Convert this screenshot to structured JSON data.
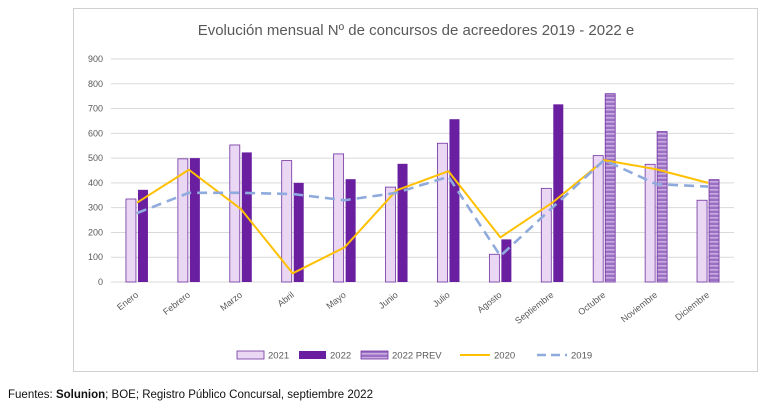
{
  "chart_data": {
    "type": "bar",
    "title": "Evolución mensual Nº de concursos de acreedores 2019 - 2022 e",
    "categories": [
      "Enero",
      "Febrero",
      "Marzo",
      "Abril",
      "Mayo",
      "Junio",
      "Julio",
      "Agosto",
      "Septiembre",
      "Octubre",
      "Noviembre",
      "Diciembre"
    ],
    "ylim": [
      0,
      900
    ],
    "yticks": [
      0,
      100,
      200,
      300,
      400,
      500,
      600,
      700,
      800,
      900
    ],
    "grid": true,
    "legend_position": "bottom",
    "series": [
      {
        "name": "2021",
        "kind": "bar",
        "color": "#ead7f3",
        "values": [
          335,
          497,
          553,
          490,
          517,
          383,
          560,
          112,
          378,
          510,
          475,
          330
        ]
      },
      {
        "name": "2022",
        "kind": "bar",
        "color": "#6a1fa0",
        "values": [
          372,
          500,
          523,
          400,
          415,
          477,
          657,
          172,
          717,
          null,
          null,
          null
        ]
      },
      {
        "name": "2022 PREV",
        "kind": "bar",
        "color": "#9b6fc4",
        "values": [
          null,
          null,
          null,
          null,
          null,
          null,
          null,
          null,
          null,
          760,
          607,
          413
        ]
      },
      {
        "name": "2020",
        "kind": "line",
        "color": "#ffc000",
        "values": [
          320,
          453,
          295,
          35,
          140,
          370,
          447,
          180,
          320,
          492,
          455,
          400
        ]
      },
      {
        "name": "2019",
        "kind": "line-dashed",
        "color": "#8faadc",
        "values": [
          278,
          360,
          360,
          355,
          330,
          360,
          425,
          105,
          300,
          492,
          395,
          385
        ]
      }
    ]
  },
  "source": {
    "prefix": "Fuentes: ",
    "bold": "Solunion",
    "rest": "; BOE; Registro Público Concursal, septiembre 2022"
  }
}
